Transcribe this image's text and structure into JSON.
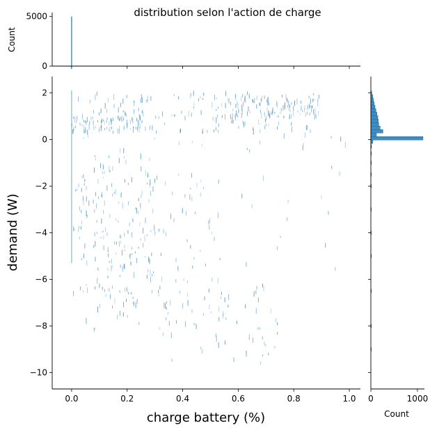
{
  "chart_data": {
    "type": "jointplot-histogram",
    "title": "distribution selon l'action de charge",
    "xlabel": "charge battery (%)",
    "ylabel": "demand (W)",
    "xlim": [
      -0.07,
      1.04
    ],
    "ylim": [
      -10.7,
      2.7
    ],
    "x_ticks": [
      0.0,
      0.2,
      0.4,
      0.6,
      0.8,
      1.0
    ],
    "x_tick_labels": [
      "0.0",
      "0.2",
      "0.4",
      "0.6",
      "0.8",
      "1.0"
    ],
    "y_ticks": [
      2,
      0,
      -2,
      -4,
      -6,
      -8,
      -10
    ],
    "y_tick_labels": [
      "2",
      "0",
      "−2",
      "−4",
      "−6",
      "−8",
      "−10"
    ],
    "color": "#1f77b4",
    "grid": false,
    "top_marginal": {
      "ylabel": "Count",
      "y_ticks": [
        0,
        5000
      ],
      "y_tick_labels": [
        "0",
        "5000"
      ],
      "ylim": [
        0,
        5400
      ],
      "bins": [
        {
          "x": 0.0,
          "count": 5000
        }
      ]
    },
    "right_marginal": {
      "xlabel": "Count",
      "x_ticks": [
        0,
        1000
      ],
      "x_tick_labels": [
        "0",
        "1000"
      ],
      "xlim": [
        0,
        1150
      ],
      "bins": [
        {
          "y": 2.0,
          "count": 20
        },
        {
          "y": 1.85,
          "count": 40
        },
        {
          "y": 1.7,
          "count": 55
        },
        {
          "y": 1.55,
          "count": 70
        },
        {
          "y": 1.4,
          "count": 90
        },
        {
          "y": 1.25,
          "count": 110
        },
        {
          "y": 1.1,
          "count": 130
        },
        {
          "y": 0.95,
          "count": 150
        },
        {
          "y": 0.8,
          "count": 160
        },
        {
          "y": 0.65,
          "count": 170
        },
        {
          "y": 0.5,
          "count": 200
        },
        {
          "y": 0.35,
          "count": 260
        },
        {
          "y": 0.2,
          "count": 120
        },
        {
          "y": 0.05,
          "count": 1120
        },
        {
          "y": -0.1,
          "count": 40
        },
        {
          "y": -0.3,
          "count": 15
        },
        {
          "y": -0.6,
          "count": 12
        },
        {
          "y": -1.0,
          "count": 10
        },
        {
          "y": -1.5,
          "count": 10
        },
        {
          "y": -2.0,
          "count": 8
        },
        {
          "y": -3.0,
          "count": 6
        },
        {
          "y": -4.0,
          "count": 6
        },
        {
          "y": -5.0,
          "count": 5
        },
        {
          "y": -6.5,
          "count": 4
        },
        {
          "y": -8.0,
          "count": 3
        },
        {
          "y": -9.0,
          "count": 2
        }
      ]
    },
    "joint_density": [
      {
        "x": [
          0.0,
          0.88
        ],
        "y": [
          0.3,
          2.0
        ],
        "weight": 170
      },
      {
        "x": [
          0.0,
          0.25
        ],
        "y": [
          0.3,
          1.0
        ],
        "weight": 60
      },
      {
        "x": [
          0.55,
          0.9
        ],
        "y": [
          0.9,
          1.9
        ],
        "weight": 80
      },
      {
        "x": [
          0.0,
          1.0
        ],
        "y": [
          -0.5,
          0.2
        ],
        "weight": 18
      },
      {
        "x": [
          0.0,
          0.3
        ],
        "y": [
          -7.2,
          -0.5
        ],
        "weight": 150
      },
      {
        "x": [
          0.05,
          0.55
        ],
        "y": [
          -8.2,
          -1.5
        ],
        "weight": 110
      },
      {
        "x": [
          0.3,
          0.75
        ],
        "y": [
          -9.8,
          -6.0
        ],
        "weight": 60
      },
      {
        "x": [
          0.6,
          0.98
        ],
        "y": [
          -6.0,
          -1.0
        ],
        "weight": 14
      }
    ]
  }
}
